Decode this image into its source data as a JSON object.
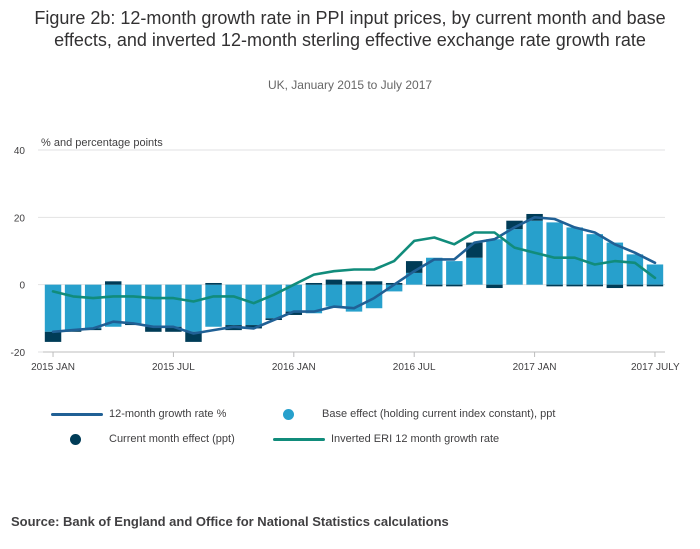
{
  "title": "Figure 2b: 12-month growth rate in PPI input prices, by current month and base effects, and inverted 12-month sterling effective exchange rate growth rate",
  "subtitle": "UK, January 2015 to July 2017",
  "source": "Source: Bank of England and Office for National Statistics calculations",
  "colors": {
    "growth_line": "#206095",
    "base_effect": "#27a0cc",
    "current_effect": "#003c57",
    "eri_line": "#118c7b",
    "grid": "#e2e2e3",
    "axis_text": "#414042"
  },
  "chart_data": {
    "type": "bar",
    "ylabel": "% and percentage points",
    "ylim": [
      -20,
      40
    ],
    "yticks": [
      "40",
      "20",
      "0",
      "-20"
    ],
    "ytick_values": [
      40,
      20,
      0,
      -20
    ],
    "xtick_labels": [
      "2015 JAN",
      "2015 JUL",
      "2016 JAN",
      "2016 JUL",
      "2017 JAN",
      "2017 JULY"
    ],
    "xtick_indices": [
      0,
      6,
      12,
      18,
      24,
      30
    ],
    "categories": [
      "2015 JAN",
      "2015 FEB",
      "2015 MAR",
      "2015 APR",
      "2015 MAY",
      "2015 JUN",
      "2015 JUL",
      "2015 AUG",
      "2015 SEP",
      "2015 OCT",
      "2015 NOV",
      "2015 DEC",
      "2016 JAN",
      "2016 FEB",
      "2016 MAR",
      "2016 APR",
      "2016 MAY",
      "2016 JUN",
      "2016 JUL",
      "2016 AUG",
      "2016 SEP",
      "2016 OCT",
      "2016 NOV",
      "2016 DEC",
      "2017 JAN",
      "2017 FEB",
      "2017 MAR",
      "2017 APR",
      "2017 MAY",
      "2017 JUN",
      "2017 JULY"
    ],
    "series": [
      {
        "name": "Base effect (holding current index constant), ppt",
        "kind": "bar",
        "values": [
          -14,
          -13.5,
          -13,
          -12.5,
          -11.5,
          -12.5,
          -12.5,
          -14,
          -12.5,
          -12,
          -12,
          -10,
          -8,
          -8.5,
          -6.5,
          -8,
          -7,
          -2,
          3.5,
          8,
          7,
          8,
          13.5,
          16.5,
          19,
          18.5,
          17,
          15,
          12.5,
          9,
          6
        ]
      },
      {
        "name": "Current month effect (ppt)",
        "kind": "bar",
        "values": [
          -3,
          -0.5,
          -0.5,
          1,
          -0.5,
          -1.5,
          -1.5,
          -3,
          0.5,
          -1.5,
          -1,
          -0.5,
          -1,
          0.5,
          1.5,
          1,
          1,
          0.5,
          3.5,
          -0.5,
          -0.5,
          4.5,
          -1,
          2.5,
          2,
          -0.5,
          -0.5,
          -0.5,
          -1,
          -0.5,
          -0.5
        ]
      },
      {
        "name": "12-month growth rate %",
        "kind": "line",
        "values": [
          -14,
          -13.5,
          -13,
          -11,
          -11.5,
          -12.5,
          -12.5,
          -14.5,
          -13.5,
          -12.5,
          -13,
          -10.5,
          -8,
          -8,
          -6.5,
          -7,
          -4,
          0,
          4,
          7.5,
          7.5,
          12.5,
          13.5,
          17,
          20,
          19.5,
          17,
          15.5,
          12,
          9.5,
          6.5
        ]
      },
      {
        "name": "Inverted ERI 12 month growth rate",
        "kind": "line",
        "values": [
          -2,
          -3.5,
          -4,
          -3.5,
          -3.5,
          -4,
          -4,
          -5,
          -3.5,
          -3.5,
          -5.5,
          -3,
          0,
          3,
          4,
          4.5,
          4.5,
          7,
          13,
          14,
          12,
          15.5,
          15.5,
          11,
          9.5,
          8,
          8,
          6,
          7,
          6.5,
          2
        ]
      }
    ]
  },
  "legend": {
    "growth": "12-month growth rate %",
    "base": "Base effect (holding current index constant), ppt",
    "current": "Current month effect (ppt)",
    "eri": "Inverted ERI 12 month growth rate"
  }
}
